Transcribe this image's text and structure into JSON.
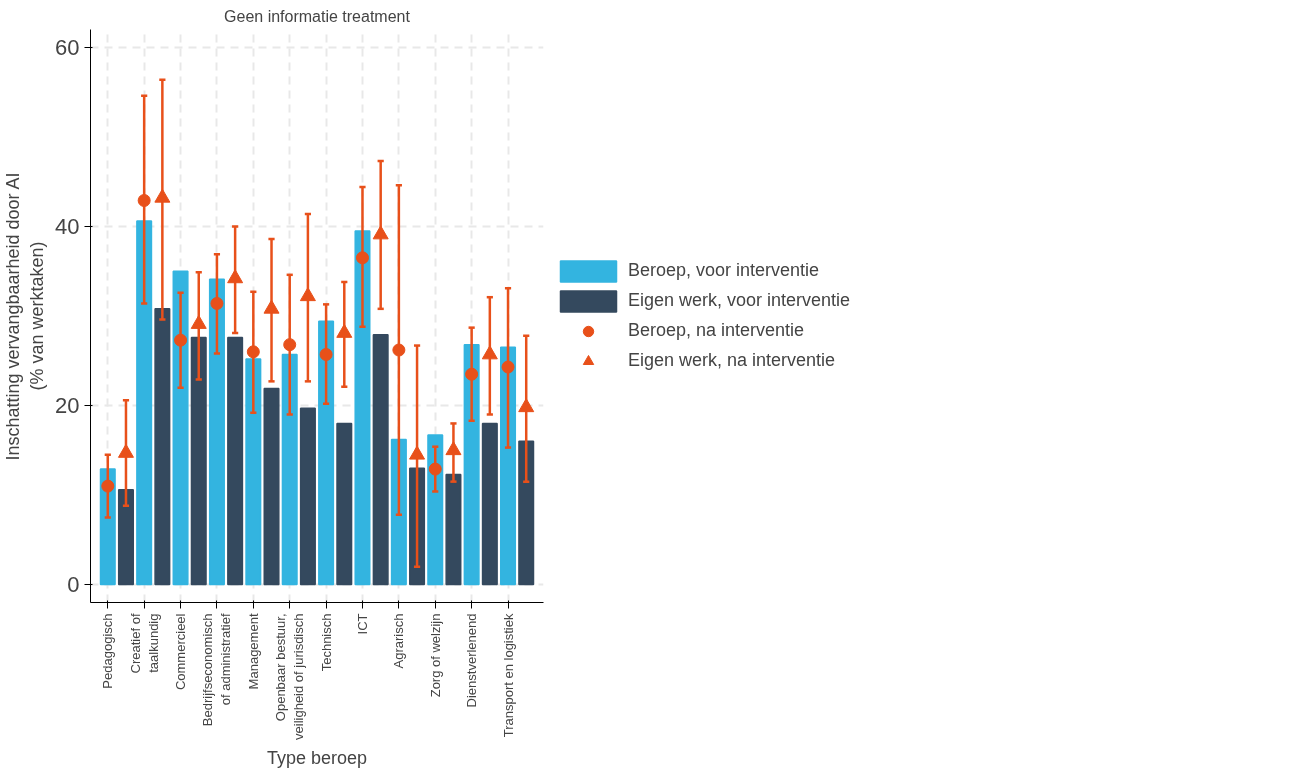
{
  "chart_data": {
    "type": "bar",
    "title": "Geen informatie treatment",
    "xlabel": "Type beroep",
    "ylabel": "Inschatting vervangbaarheid door AI\n(% van werktaken)",
    "categories": [
      "Pedagogisch",
      null,
      "Creatief of\ntaalkundig",
      null,
      "Commercieel",
      null,
      "Bedrijfseconomisch\nof administratief",
      null,
      "Management",
      null,
      "Openbaar bestuur,\nveiligheid of jurisdisch",
      null,
      "Technisch",
      null,
      "ICT",
      null,
      "Agrarisch",
      null,
      "Zorg of welzijn",
      null,
      "Dienstverlenend",
      null,
      "Transport en logistiek",
      null
    ],
    "series": [
      {
        "name": "Beroep, voor interventie",
        "color": "#33b4e0",
        "values": [
          12.9,
          null,
          40.6,
          null,
          35.0,
          null,
          34.1,
          null,
          25.2,
          null,
          25.7,
          null,
          29.4,
          null,
          39.5,
          null,
          16.2,
          null,
          16.7,
          null,
          26.8,
          null,
          26.5,
          null
        ]
      },
      {
        "name": "Eigen werk, voor interventie",
        "color": "#34495e",
        "values": [
          null,
          10.6,
          null,
          30.8,
          null,
          27.6,
          null,
          27.6,
          null,
          21.9,
          null,
          19.7,
          null,
          18.0,
          null,
          27.9,
          null,
          13.0,
          null,
          12.3,
          null,
          18.0,
          null,
          16.0
        ]
      },
      {
        "name": "Beroep, na interventie",
        "type": "scatter",
        "marker": "circle",
        "color": "#e8501a",
        "values": [
          11.0,
          null,
          42.9,
          null,
          27.3,
          null,
          31.4,
          null,
          26.0,
          null,
          26.8,
          null,
          25.7,
          null,
          36.5,
          null,
          26.2,
          null,
          12.9,
          null,
          23.5,
          null,
          24.3,
          null
        ],
        "errors": [
          [
            7.5,
            14.5
          ],
          null,
          [
            31.4,
            54.6
          ],
          null,
          [
            22.0,
            32.6
          ],
          null,
          [
            25.8,
            36.9
          ],
          null,
          [
            19.2,
            32.7
          ],
          null,
          [
            19.0,
            34.6
          ],
          null,
          [
            20.2,
            31.3
          ],
          null,
          [
            28.8,
            44.4
          ],
          null,
          [
            7.8,
            44.6
          ],
          null,
          [
            10.4,
            15.4
          ],
          null,
          [
            18.3,
            28.7
          ],
          null,
          [
            15.3,
            33.1
          ],
          null
        ]
      },
      {
        "name": "Eigen werk, na interventie",
        "type": "scatter",
        "marker": "triangle",
        "color": "#e8501a",
        "values": [
          null,
          14.7,
          null,
          43.2,
          null,
          29.1,
          null,
          34.2,
          null,
          30.8,
          null,
          32.2,
          null,
          28.1,
          null,
          39.1,
          null,
          14.5,
          null,
          15.0,
          null,
          25.7,
          null,
          19.8
        ],
        "errors": [
          null,
          [
            8.8,
            20.6
          ],
          null,
          [
            29.6,
            56.4
          ],
          null,
          [
            22.9,
            34.9
          ],
          null,
          [
            28.1,
            40.0
          ],
          null,
          [
            22.7,
            38.6
          ],
          null,
          [
            22.7,
            41.4
          ],
          null,
          [
            22.1,
            33.8
          ],
          null,
          [
            30.8,
            47.3
          ],
          null,
          [
            2.0,
            26.7
          ],
          null,
          [
            11.5,
            18.0
          ],
          null,
          [
            19.0,
            32.1
          ],
          null,
          [
            11.5,
            27.8
          ]
        ]
      }
    ],
    "ylim": [
      -2,
      62
    ],
    "yticks": [
      0,
      20,
      40,
      60
    ],
    "grid": true,
    "legend": "right"
  }
}
